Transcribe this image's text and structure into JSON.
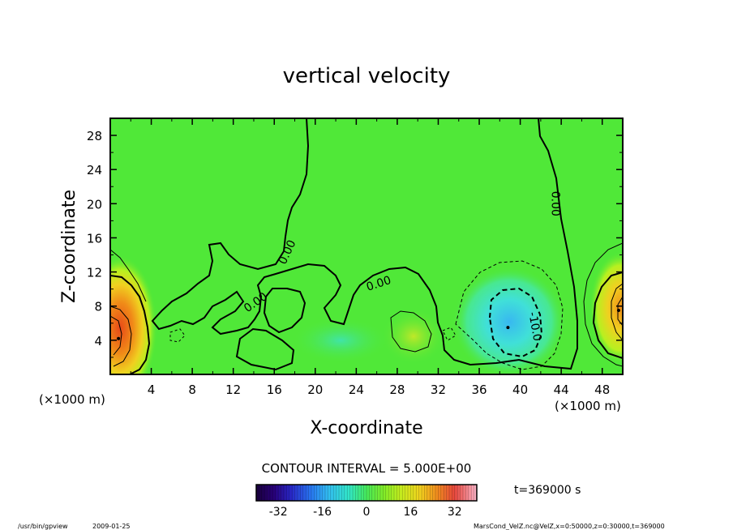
{
  "chart_data": {
    "type": "heatmap",
    "title": "vertical velocity",
    "xlabel": "X-coordinate",
    "ylabel": "Z-coordinate",
    "x_unit": "(×1000 m)",
    "y_unit": "(×1000 m)",
    "xlim": [
      0,
      50
    ],
    "ylim": [
      0,
      30
    ],
    "x_ticks": [
      4,
      8,
      12,
      16,
      20,
      24,
      28,
      32,
      36,
      40,
      44,
      48
    ],
    "y_ticks": [
      4,
      8,
      12,
      16,
      20,
      24,
      28
    ],
    "contour_interval_text": "CONTOUR INTERVAL = 5.000E+00",
    "contour_labels": [
      {
        "text": "0.00",
        "x": 14.2,
        "y": 8.4,
        "angle": -35
      },
      {
        "text": "0.00",
        "x": 17.3,
        "y": 14.3,
        "angle": -65
      },
      {
        "text": "0.00",
        "x": 26.2,
        "y": 10.6,
        "angle": -18
      },
      {
        "text": "0.00",
        "x": 43.4,
        "y": 20.0,
        "angle": 90
      },
      {
        "text": "-10.0",
        "x": 41.4,
        "y": 5.6,
        "angle": 80
      }
    ],
    "extrema": [
      {
        "type": "max",
        "x": 0.8,
        "y": 4.2,
        "value": 30
      },
      {
        "type": "min",
        "x": 38.8,
        "y": 5.5,
        "value": -14
      },
      {
        "type": "max",
        "x": 49.6,
        "y": 7.5,
        "value": 20
      }
    ],
    "colorbar": {
      "range": [
        -40,
        40
      ],
      "ticks": [
        -32,
        -16,
        0,
        16,
        32
      ]
    },
    "time_label": "t=369000 s",
    "program": "/usr/bin/gpview",
    "date": "2009-01-25",
    "source": "MarsCond_VelZ.nc@VelZ,x=0:50000,z=0:30000,t=369000"
  }
}
